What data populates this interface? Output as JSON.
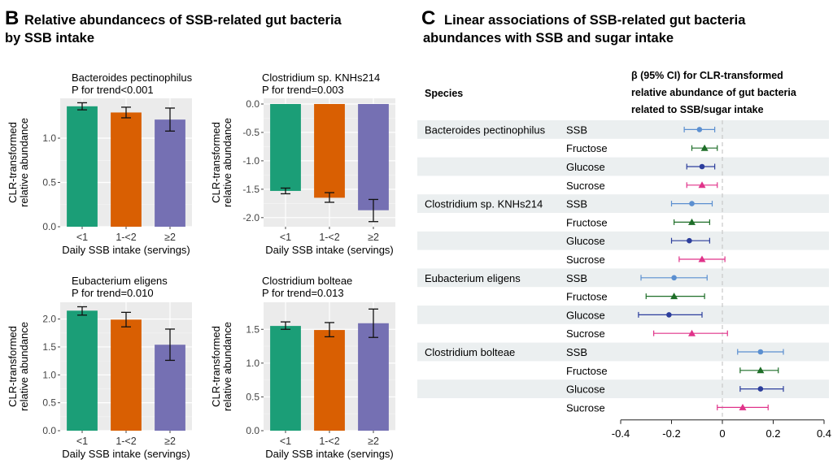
{
  "panel_b": {
    "label": "B",
    "title_line1": "Relative abundancecs of SSB-related gut bacteria",
    "title_line2": "by SSB intake"
  },
  "panel_c": {
    "label": "C",
    "title_line1": "Linear associations of SSB-related gut bacteria",
    "title_line2": "abundances with SSB and sugar intake"
  },
  "colors": {
    "bar_lt1": "#1b9e77",
    "bar_1to2": "#d95f02",
    "bar_ge2": "#7570b3",
    "SSB": "#5b8fd0",
    "Fructose": "#1e6e28",
    "Glucose": "#2c3e9c",
    "Sucrose": "#e0338a"
  },
  "chart_data": [
    {
      "type": "bar",
      "title": "Bacteroides pectinophilus",
      "subtitle": "P for trend<0.001",
      "categories": [
        "<1",
        "1-<2",
        "≥2"
      ],
      "values": [
        1.36,
        1.29,
        1.21
      ],
      "errors_low": [
        1.32,
        1.23,
        1.08
      ],
      "errors_high": [
        1.4,
        1.35,
        1.34
      ],
      "xlabel": "Daily SSB intake (servings)",
      "ylabel_line1": "CLR-transformed",
      "ylabel_line2": "relative abundance",
      "ylim": [
        0,
        1.45
      ],
      "yticks": [
        0.0,
        0.5,
        1.0
      ],
      "ytick_labels": [
        "0.0",
        "0.5",
        "1.0"
      ]
    },
    {
      "type": "bar",
      "title": "Clostridium sp. KNHs214",
      "subtitle": "P for trend=0.003",
      "categories": [
        "<1",
        "1-<2",
        "≥2"
      ],
      "values": [
        -1.53,
        -1.65,
        -1.87
      ],
      "errors_low": [
        -1.58,
        -1.73,
        -2.07
      ],
      "errors_high": [
        -1.48,
        -1.56,
        -1.68
      ],
      "xlabel": "Daily SSB intake (servings)",
      "ylabel_line1": "CLR-transformed",
      "ylabel_line2": "relative abundance",
      "ylim": [
        -2.16,
        0.1
      ],
      "yticks": [
        0.0,
        -0.5,
        -1.0,
        -1.5,
        -2.0
      ],
      "ytick_labels": [
        "0.0",
        "-0.5",
        "-1.0",
        "-1.5",
        "-2.0"
      ]
    },
    {
      "type": "bar",
      "title": "Eubacterium eligens",
      "subtitle": "P for trend=0.010",
      "categories": [
        "<1",
        "1-<2",
        "≥2"
      ],
      "values": [
        2.15,
        1.99,
        1.54
      ],
      "errors_low": [
        2.07,
        1.86,
        1.26
      ],
      "errors_high": [
        2.22,
        2.12,
        1.82
      ],
      "xlabel": "Daily SSB intake (servings)",
      "ylabel_line1": "CLR-transformed",
      "ylabel_line2": "relative abundance",
      "ylim": [
        0,
        2.3
      ],
      "yticks": [
        0.0,
        0.5,
        1.0,
        1.5,
        2.0
      ],
      "ytick_labels": [
        "0.0",
        "0.5",
        "1.0",
        "1.5",
        "2.0"
      ]
    },
    {
      "type": "bar",
      "title": "Clostridium bolteae",
      "subtitle": "P for trend=0.013",
      "categories": [
        "<1",
        "1-<2",
        "≥2"
      ],
      "values": [
        1.55,
        1.49,
        1.59
      ],
      "errors_low": [
        1.5,
        1.39,
        1.38
      ],
      "errors_high": [
        1.61,
        1.6,
        1.8
      ],
      "xlabel": "Daily SSB intake (servings)",
      "ylabel_line1": "CLR-transformed",
      "ylabel_line2": "relative abundance",
      "ylim": [
        0,
        1.9
      ],
      "yticks": [
        0.0,
        0.5,
        1.0,
        1.5
      ],
      "ytick_labels": [
        "0.0",
        "0.5",
        "1.0",
        "1.5"
      ]
    },
    {
      "type": "forest",
      "header_species": "Species",
      "header_beta": [
        "β (95% CI) for CLR-transformed",
        "relative abundance of gut bacteria",
        "related to SSB/sugar intake"
      ],
      "xlim": [
        -0.4,
        0.4
      ],
      "xticks": [
        -0.4,
        -0.2,
        0,
        0.2,
        0.4
      ],
      "xtick_labels": [
        "-0.4",
        "-0.2",
        "0",
        "0.2",
        "0.4"
      ],
      "reference_line": 0,
      "rows": [
        {
          "species": "Bacteroides pectinophilus",
          "exposure": "SSB",
          "beta": -0.09,
          "lo": -0.15,
          "hi": -0.03
        },
        {
          "species": "",
          "exposure": "Fructose",
          "beta": -0.07,
          "lo": -0.12,
          "hi": -0.02
        },
        {
          "species": "",
          "exposure": "Glucose",
          "beta": -0.08,
          "lo": -0.14,
          "hi": -0.03
        },
        {
          "species": "",
          "exposure": "Sucrose",
          "beta": -0.08,
          "lo": -0.14,
          "hi": -0.02
        },
        {
          "species": "Clostridium sp. KNHs214",
          "exposure": "SSB",
          "beta": -0.12,
          "lo": -0.2,
          "hi": -0.04
        },
        {
          "species": "",
          "exposure": "Fructose",
          "beta": -0.12,
          "lo": -0.19,
          "hi": -0.05
        },
        {
          "species": "",
          "exposure": "Glucose",
          "beta": -0.13,
          "lo": -0.2,
          "hi": -0.05
        },
        {
          "species": "",
          "exposure": "Sucrose",
          "beta": -0.08,
          "lo": -0.17,
          "hi": 0.01
        },
        {
          "species": "Eubacterium eligens",
          "exposure": "SSB",
          "beta": -0.19,
          "lo": -0.32,
          "hi": -0.06
        },
        {
          "species": "",
          "exposure": "Fructose",
          "beta": -0.19,
          "lo": -0.3,
          "hi": -0.07
        },
        {
          "species": "",
          "exposure": "Glucose",
          "beta": -0.21,
          "lo": -0.33,
          "hi": -0.08
        },
        {
          "species": "",
          "exposure": "Sucrose",
          "beta": -0.12,
          "lo": -0.27,
          "hi": 0.02
        },
        {
          "species": "Clostridium bolteae",
          "exposure": "SSB",
          "beta": 0.15,
          "lo": 0.06,
          "hi": 0.24
        },
        {
          "species": "",
          "exposure": "Fructose",
          "beta": 0.15,
          "lo": 0.07,
          "hi": 0.22
        },
        {
          "species": "",
          "exposure": "Glucose",
          "beta": 0.15,
          "lo": 0.07,
          "hi": 0.24
        },
        {
          "species": "",
          "exposure": "Sucrose",
          "beta": 0.08,
          "lo": -0.02,
          "hi": 0.18
        }
      ]
    }
  ]
}
